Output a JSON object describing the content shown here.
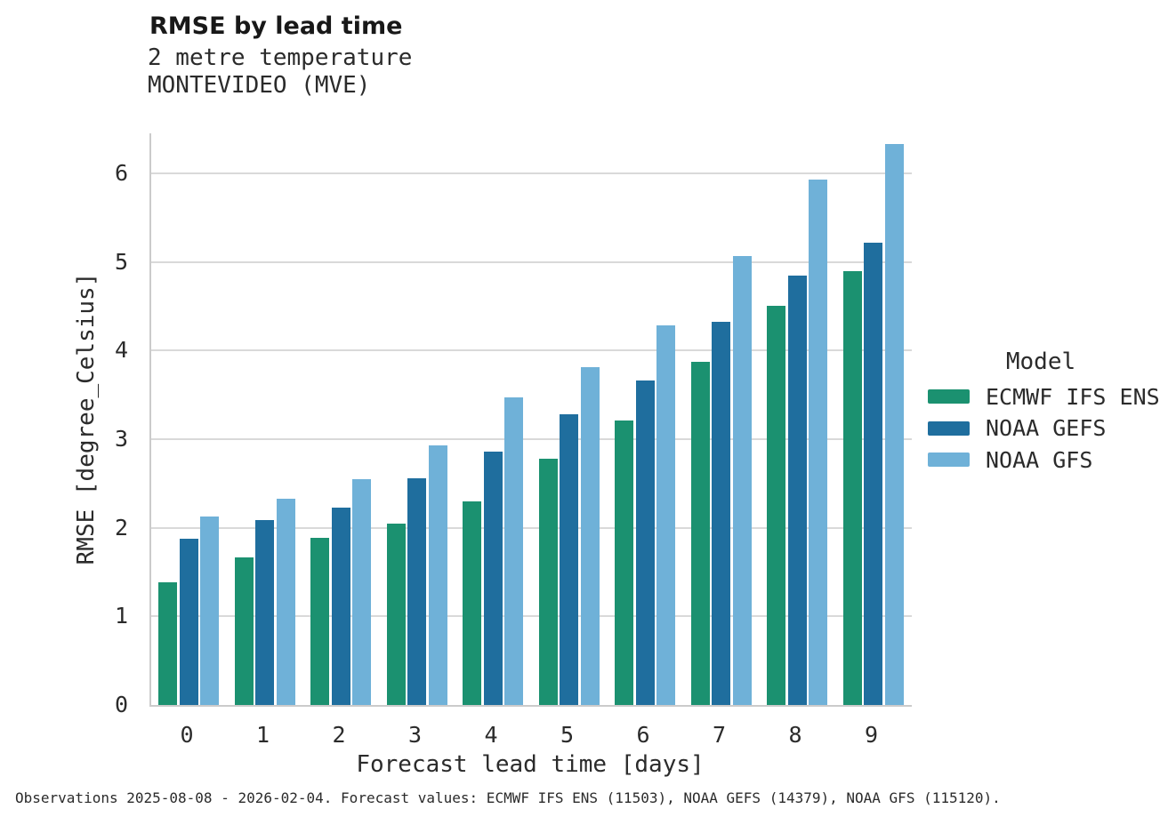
{
  "title": "RMSE by lead time",
  "caption": "Observations 2025-08-08 - 2026-02-04. Forecast values: ECMWF IFS ENS (11503), NOAA GEFS (14379), NOAA GFS (115120).",
  "legend": {
    "title": "Model",
    "entries": [
      {
        "label": "ECMWF IFS ENS",
        "color": "#1b9170"
      },
      {
        "label": "NOAA GEFS",
        "color": "#1f6e9e"
      },
      {
        "label": "NOAA GFS",
        "color": "#6fb1d8"
      }
    ]
  },
  "chart_data": {
    "type": "bar",
    "title": "RMSE by lead time",
    "subtitle": [
      "2 metre temperature",
      "MONTEVIDEO (MVE)"
    ],
    "xlabel": "Forecast lead time [days]",
    "ylabel": "RMSE [degree_Celsius]",
    "categories": [
      "0",
      "1",
      "2",
      "3",
      "4",
      "5",
      "6",
      "7",
      "8",
      "9"
    ],
    "series": [
      {
        "name": "ECMWF IFS ENS",
        "color": "#1b9170",
        "values": [
          1.38,
          1.67,
          1.89,
          2.05,
          2.3,
          2.78,
          3.21,
          3.87,
          4.5,
          4.9
        ]
      },
      {
        "name": "NOAA GEFS",
        "color": "#1f6e9e",
        "values": [
          1.88,
          2.09,
          2.23,
          2.56,
          2.86,
          3.28,
          3.66,
          4.32,
          4.85,
          5.22
        ]
      },
      {
        "name": "NOAA GFS",
        "color": "#6fb1d8",
        "values": [
          2.13,
          2.33,
          2.55,
          2.93,
          3.47,
          3.81,
          4.28,
          5.07,
          5.93,
          6.33
        ]
      }
    ],
    "ylim": [
      0,
      6.45
    ],
    "yticks": [
      0,
      1,
      2,
      3,
      4,
      5,
      6
    ],
    "grid": "horizontal",
    "legend_title": "Model",
    "legend_position": "right"
  },
  "colors": {
    "grid": "#d9d9d9",
    "spine": "#cbcbcb",
    "text": "#2b2b2b"
  }
}
